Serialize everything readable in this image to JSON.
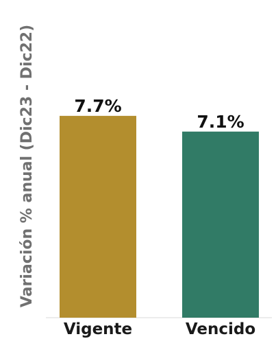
{
  "chart_data": {
    "type": "bar",
    "title": "",
    "xlabel": "",
    "ylabel": "Variación % anual (Dic23 - Dic22)",
    "categories": [
      "Vigente",
      "Vencido"
    ],
    "values": [
      7.7,
      7.1
    ],
    "data_labels": [
      "7.7%",
      "7.1%"
    ],
    "colors": [
      "#B38E2E",
      "#317B66"
    ],
    "ylim": [
      0,
      10
    ],
    "grid": false,
    "legend": "none"
  }
}
